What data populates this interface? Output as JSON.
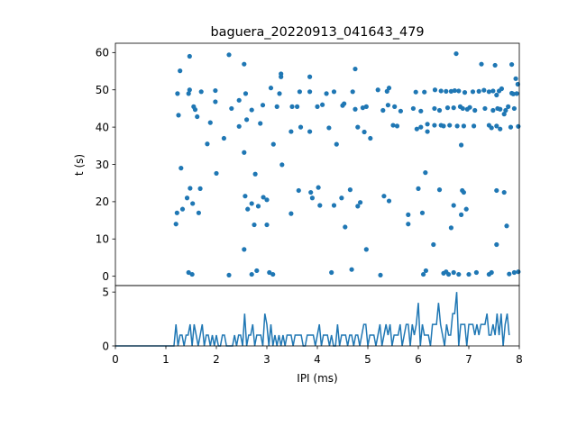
{
  "colors": {
    "series": "#1f77b4",
    "axes": "#000000",
    "background": "#ffffff"
  },
  "chart_data": [
    {
      "type": "scatter",
      "title": "baguera_20220913_041643_479",
      "xlabel": "",
      "ylabel": "t (s)",
      "xlim": [
        0,
        8
      ],
      "ylim": [
        62.5,
        -2.5
      ],
      "y_inverted": true,
      "xticks": [],
      "yticks": [
        0,
        10,
        20,
        30,
        40,
        50,
        60
      ],
      "ytick_labels": [
        "0",
        "10",
        "20",
        "30",
        "40",
        "50",
        "60"
      ],
      "grid": false,
      "points": [
        [
          1.45,
          1.0
        ],
        [
          1.52,
          0.5
        ],
        [
          2.25,
          0.3
        ],
        [
          2.7,
          0.5
        ],
        [
          2.8,
          1.5
        ],
        [
          3.05,
          1.0
        ],
        [
          3.12,
          0.5
        ],
        [
          4.28,
          1.0
        ],
        [
          4.68,
          1.8
        ],
        [
          5.25,
          0.3
        ],
        [
          6.1,
          0.5
        ],
        [
          6.15,
          1.5
        ],
        [
          6.5,
          0.8
        ],
        [
          6.55,
          1.2
        ],
        [
          6.6,
          0.5
        ],
        [
          6.7,
          1.0
        ],
        [
          6.8,
          0.5
        ],
        [
          7.0,
          0.5
        ],
        [
          7.15,
          1.0
        ],
        [
          7.4,
          0.5
        ],
        [
          7.45,
          1.0
        ],
        [
          7.8,
          0.6
        ],
        [
          7.9,
          1.0
        ],
        [
          7.98,
          1.2
        ],
        [
          2.55,
          7.2
        ],
        [
          4.97,
          7.2
        ],
        [
          6.3,
          8.5
        ],
        [
          7.55,
          8.5
        ],
        [
          1.2,
          14.0
        ],
        [
          2.75,
          13.8
        ],
        [
          3.0,
          13.8
        ],
        [
          4.55,
          13.2
        ],
        [
          5.8,
          14.0
        ],
        [
          6.65,
          13.0
        ],
        [
          7.75,
          13.5
        ],
        [
          1.22,
          17.0
        ],
        [
          1.33,
          18.0
        ],
        [
          1.42,
          21.0
        ],
        [
          1.53,
          19.5
        ],
        [
          1.65,
          17.0
        ],
        [
          2.62,
          18.0
        ],
        [
          2.7,
          19.5
        ],
        [
          2.83,
          18.8
        ],
        [
          2.93,
          21.2
        ],
        [
          3.0,
          20.5
        ],
        [
          3.48,
          16.8
        ],
        [
          3.9,
          21.0
        ],
        [
          4.05,
          19.0
        ],
        [
          4.33,
          19.0
        ],
        [
          4.8,
          18.8
        ],
        [
          4.85,
          19.8
        ],
        [
          5.8,
          16.5
        ],
        [
          6.08,
          17.0
        ],
        [
          6.7,
          19.0
        ],
        [
          6.85,
          16.5
        ],
        [
          6.95,
          18.0
        ],
        [
          2.57,
          21.5
        ],
        [
          3.63,
          23.0
        ],
        [
          3.87,
          22.5
        ],
        [
          4.48,
          21.0
        ],
        [
          5.32,
          21.5
        ],
        [
          5.42,
          20.2
        ],
        [
          4.02,
          23.8
        ],
        [
          4.65,
          23.2
        ],
        [
          6.0,
          23.5
        ],
        [
          6.42,
          23.2
        ],
        [
          6.87,
          23.0
        ],
        [
          6.9,
          22.5
        ],
        [
          7.55,
          23.0
        ],
        [
          7.7,
          22.5
        ],
        [
          1.48,
          23.6
        ],
        [
          1.68,
          23.5
        ],
        [
          1.3,
          29.0
        ],
        [
          2.0,
          27.6
        ],
        [
          2.77,
          27.4
        ],
        [
          3.3,
          29.9
        ],
        [
          6.14,
          27.8
        ],
        [
          1.82,
          35.5
        ],
        [
          2.55,
          33.2
        ],
        [
          2.15,
          37.0
        ],
        [
          3.13,
          35.4
        ],
        [
          4.38,
          35.4
        ],
        [
          5.05,
          37.0
        ],
        [
          6.85,
          35.2
        ],
        [
          1.88,
          41.2
        ],
        [
          2.45,
          40.2
        ],
        [
          2.6,
          42.0
        ],
        [
          2.87,
          41.0
        ],
        [
          3.48,
          38.8
        ],
        [
          3.67,
          40.0
        ],
        [
          3.85,
          38.8
        ],
        [
          4.23,
          39.8
        ],
        [
          4.93,
          38.7
        ],
        [
          4.8,
          40.0
        ],
        [
          5.5,
          40.5
        ],
        [
          5.58,
          40.3
        ],
        [
          5.97,
          39.5
        ],
        [
          6.05,
          40.0
        ],
        [
          6.18,
          38.8
        ],
        [
          6.18,
          40.8
        ],
        [
          6.32,
          40.5
        ],
        [
          6.45,
          40.5
        ],
        [
          6.5,
          40.3
        ],
        [
          6.62,
          40.5
        ],
        [
          6.77,
          40.3
        ],
        [
          6.9,
          40.3
        ],
        [
          7.1,
          40.3
        ],
        [
          7.4,
          40.5
        ],
        [
          7.45,
          39.8
        ],
        [
          7.55,
          40.3
        ],
        [
          7.62,
          39.5
        ],
        [
          7.83,
          40.0
        ],
        [
          7.98,
          40.2
        ],
        [
          1.25,
          43.2
        ],
        [
          1.62,
          42.8
        ],
        [
          2.3,
          45.0
        ],
        [
          2.7,
          44.6
        ],
        [
          2.92,
          45.9
        ],
        [
          3.2,
          45.5
        ],
        [
          3.5,
          45.5
        ],
        [
          3.6,
          45.5
        ],
        [
          4.0,
          45.5
        ],
        [
          4.1,
          46.0
        ],
        [
          4.5,
          45.8
        ],
        [
          4.53,
          46.3
        ],
        [
          4.75,
          44.8
        ],
        [
          4.9,
          45.2
        ],
        [
          4.97,
          45.5
        ],
        [
          5.3,
          44.5
        ],
        [
          5.4,
          45.9
        ],
        [
          5.53,
          45.5
        ],
        [
          5.65,
          44.3
        ],
        [
          5.9,
          45.0
        ],
        [
          6.05,
          44.3
        ],
        [
          6.32,
          45.0
        ],
        [
          6.42,
          44.5
        ],
        [
          6.58,
          45.2
        ],
        [
          6.7,
          45.2
        ],
        [
          6.83,
          45.5
        ],
        [
          6.88,
          45.0
        ],
        [
          6.97,
          44.8
        ],
        [
          7.02,
          45.3
        ],
        [
          7.12,
          44.5
        ],
        [
          7.32,
          45.0
        ],
        [
          7.48,
          44.5
        ],
        [
          7.57,
          45.0
        ],
        [
          7.62,
          44.8
        ],
        [
          7.7,
          43.5
        ],
        [
          7.73,
          44.5
        ],
        [
          7.78,
          45.5
        ],
        [
          7.9,
          45.0
        ],
        [
          1.55,
          45.5
        ],
        [
          1.58,
          44.7
        ],
        [
          1.23,
          49.0
        ],
        [
          1.45,
          49.0
        ],
        [
          1.47,
          50.0
        ],
        [
          1.7,
          49.5
        ],
        [
          1.98,
          49.8
        ],
        [
          1.98,
          46.8
        ],
        [
          2.45,
          47.2
        ],
        [
          2.58,
          49.0
        ],
        [
          3.08,
          50.5
        ],
        [
          3.25,
          49.0
        ],
        [
          3.65,
          49.5
        ],
        [
          3.85,
          49.5
        ],
        [
          4.18,
          49.0
        ],
        [
          4.33,
          49.5
        ],
        [
          4.7,
          49.5
        ],
        [
          5.2,
          50.0
        ],
        [
          5.38,
          49.6
        ],
        [
          5.42,
          50.5
        ],
        [
          5.95,
          49.4
        ],
        [
          6.12,
          49.4
        ],
        [
          6.33,
          50.0
        ],
        [
          6.45,
          49.7
        ],
        [
          6.55,
          49.6
        ],
        [
          6.65,
          49.6
        ],
        [
          6.72,
          49.8
        ],
        [
          6.8,
          49.7
        ],
        [
          6.92,
          49.3
        ],
        [
          7.08,
          49.5
        ],
        [
          7.2,
          49.6
        ],
        [
          7.3,
          49.9
        ],
        [
          7.4,
          49.5
        ],
        [
          7.48,
          49.7
        ],
        [
          7.55,
          48.6
        ],
        [
          7.6,
          49.7
        ],
        [
          7.65,
          50.3
        ],
        [
          7.85,
          49.1
        ],
        [
          7.88,
          48.9
        ],
        [
          7.95,
          49.0
        ],
        [
          7.93,
          53.0
        ],
        [
          7.97,
          51.5
        ],
        [
          1.28,
          55.1
        ],
        [
          1.47,
          59.0
        ],
        [
          2.25,
          59.4
        ],
        [
          2.55,
          56.9
        ],
        [
          3.28,
          53.5
        ],
        [
          3.28,
          54.3
        ],
        [
          3.85,
          53.5
        ],
        [
          4.75,
          55.6
        ],
        [
          6.75,
          59.7
        ],
        [
          7.25,
          56.9
        ],
        [
          7.52,
          56.6
        ],
        [
          7.85,
          56.8
        ]
      ]
    },
    {
      "type": "line",
      "title": "",
      "xlabel": "IPI (ms)",
      "ylabel": "",
      "xlim": [
        0,
        8
      ],
      "ylim": [
        0,
        5.6
      ],
      "xticks": [
        0,
        1,
        2,
        3,
        4,
        5,
        6,
        7,
        8
      ],
      "xtick_labels": [
        "0",
        "1",
        "2",
        "3",
        "4",
        "5",
        "6",
        "7",
        "8"
      ],
      "yticks": [
        0,
        5
      ],
      "ytick_labels": [
        "0",
        "5"
      ],
      "grid": false,
      "bin_start": 0,
      "bin_width": 0.04,
      "values": [
        0,
        0,
        0,
        0,
        0,
        0,
        0,
        0,
        0,
        0,
        0,
        0,
        0,
        0,
        0,
        0,
        0,
        0,
        0,
        0,
        0,
        0,
        0,
        0,
        0,
        0,
        0,
        0,
        0,
        0,
        2,
        0,
        1,
        1,
        0,
        1,
        1,
        2,
        0,
        2,
        1,
        0,
        1,
        2,
        0,
        1,
        1,
        0,
        1,
        0,
        1,
        0,
        0,
        1,
        1,
        0,
        0,
        0,
        0,
        1,
        0,
        1,
        1,
        0,
        3,
        0,
        1,
        1,
        2,
        0,
        1,
        1,
        1,
        0,
        3,
        2,
        0,
        2,
        0,
        1,
        0,
        1,
        0,
        1,
        0,
        1,
        1,
        1,
        0,
        1,
        1,
        1,
        1,
        0,
        0,
        1,
        1,
        1,
        1,
        0,
        1,
        2,
        0,
        1,
        1,
        1,
        0,
        1,
        0,
        0,
        2,
        0,
        1,
        1,
        1,
        0,
        1,
        1,
        0,
        1,
        1,
        0,
        1,
        2,
        2,
        0,
        1,
        1,
        1,
        0,
        1,
        2,
        0,
        1,
        2,
        1,
        2,
        0,
        1,
        1,
        1,
        2,
        0,
        1,
        2,
        2,
        0,
        2,
        1,
        2,
        4,
        0,
        2,
        1,
        1,
        1,
        0,
        2,
        2,
        2,
        4,
        2,
        1,
        0,
        2,
        1,
        1,
        3,
        3,
        5,
        0,
        2,
        2,
        2,
        0,
        2,
        2,
        2,
        1,
        2,
        1,
        2,
        2,
        2,
        3,
        1,
        1,
        2,
        1,
        3,
        1,
        3,
        0,
        2,
        3,
        1
      ]
    }
  ]
}
